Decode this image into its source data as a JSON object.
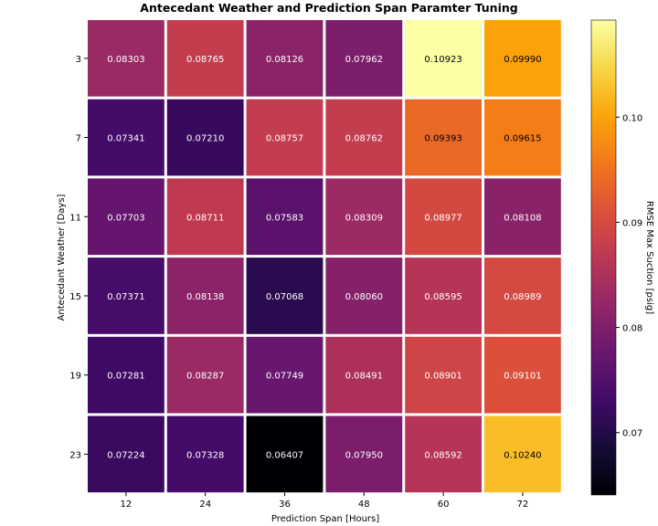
{
  "chart_data": {
    "type": "heatmap",
    "title": "Antecedant Weather and Prediction Span Paramter Tuning",
    "xlabel": "Prediction Span [Hours]",
    "ylabel": "Antecedant Weather [Days]",
    "x_categories": [
      "12",
      "24",
      "36",
      "48",
      "60",
      "72"
    ],
    "y_categories": [
      "3",
      "7",
      "11",
      "15",
      "19",
      "23"
    ],
    "values": [
      [
        0.08303,
        0.08765,
        0.08126,
        0.07962,
        0.10923,
        0.0999
      ],
      [
        0.07341,
        0.0721,
        0.08757,
        0.08762,
        0.09393,
        0.09615
      ],
      [
        0.07703,
        0.08711,
        0.07583,
        0.08309,
        0.08977,
        0.08108
      ],
      [
        0.07371,
        0.08138,
        0.07068,
        0.0806,
        0.08595,
        0.08989
      ],
      [
        0.07281,
        0.08287,
        0.07749,
        0.08491,
        0.08901,
        0.09101
      ],
      [
        0.07224,
        0.07328,
        0.06407,
        0.0795,
        0.08592,
        0.1024
      ]
    ],
    "value_labels": [
      [
        "0.08303",
        "0.08765",
        "0.08126",
        "0.07962",
        "0.10923",
        "0.09990"
      ],
      [
        "0.07341",
        "0.07210",
        "0.08757",
        "0.08762",
        "0.09393",
        "0.09615"
      ],
      [
        "0.07703",
        "0.08711",
        "0.07583",
        "0.08309",
        "0.08977",
        "0.08108"
      ],
      [
        "0.07371",
        "0.08138",
        "0.07068",
        "0.08060",
        "0.08595",
        "0.08989"
      ],
      [
        "0.07281",
        "0.08287",
        "0.07749",
        "0.08491",
        "0.08901",
        "0.09101"
      ],
      [
        "0.07224",
        "0.07328",
        "0.06407",
        "0.07950",
        "0.08592",
        "0.10240"
      ]
    ],
    "colormap": "inferno",
    "vmin": 0.06407,
    "vmax": 0.10923,
    "colorbar": {
      "label": "RMSE Max Suction [psig]",
      "ticks": [
        0.07,
        0.08,
        0.09,
        0.1
      ],
      "tick_labels": [
        "0.07",
        "0.08",
        "0.09",
        "0.10"
      ]
    },
    "cell_border_color": "#ffffff"
  }
}
